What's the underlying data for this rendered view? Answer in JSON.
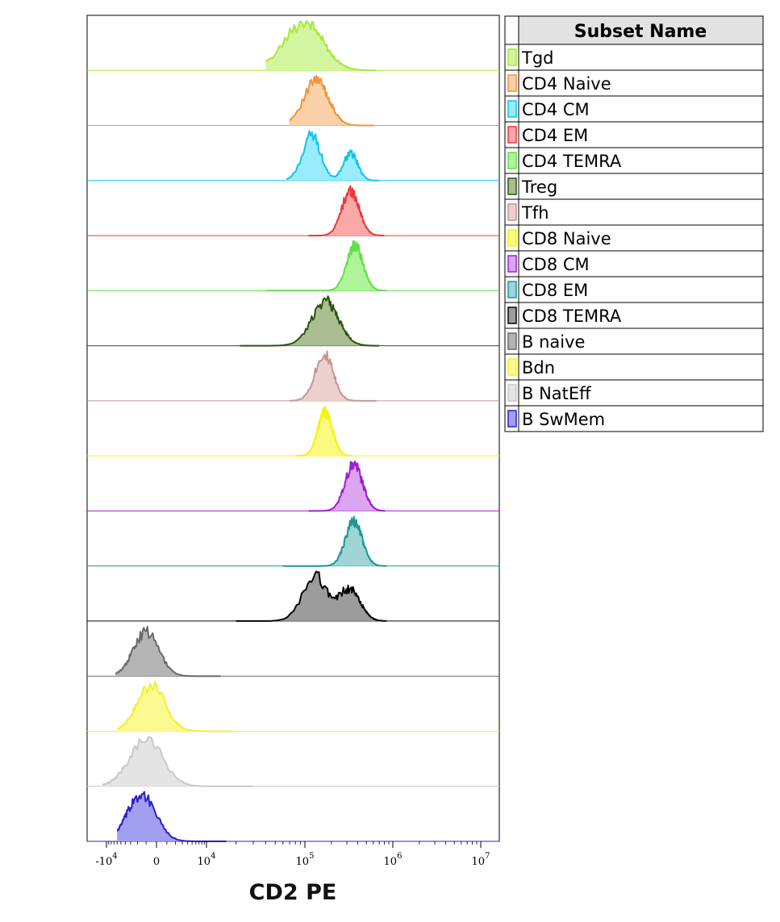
{
  "chart_data": {
    "type": "area",
    "xlabel": "CD2 PE",
    "x_scale": "biexponential",
    "x_ticks": [
      {
        "value": -10000,
        "base": "-10",
        "exp": "4"
      },
      {
        "value": 0,
        "base": "0",
        "exp": ""
      },
      {
        "value": 10000,
        "base": "10",
        "exp": "4"
      },
      {
        "value": 100000,
        "base": "10",
        "exp": "5"
      },
      {
        "value": 1000000,
        "base": "10",
        "exp": "6"
      },
      {
        "value": 10000000,
        "base": "10",
        "exp": "7"
      }
    ],
    "legend_title": "Subset Name",
    "legend_placement": "right",
    "series": [
      {
        "name": "Tgd",
        "fill": "#d4f5a0",
        "stroke": "#a6ea38",
        "peaks": [
          [
            100000,
            160000,
            1.0
          ]
        ],
        "range": [
          40000,
          650000
        ]
      },
      {
        "name": "CD4 Naive",
        "fill": "#fbd1aa",
        "stroke": "#f0943c",
        "peaks": [
          [
            135000,
            120000,
            1.0
          ]
        ],
        "range": [
          70000,
          620000
        ]
      },
      {
        "name": "CD4 CM",
        "fill": "#99ecfb",
        "stroke": "#12c3ec",
        "peaks": [
          [
            120000,
            70000,
            1.0
          ],
          [
            330000,
            150000,
            0.6
          ]
        ],
        "range": [
          65000,
          700000
        ]
      },
      {
        "name": "CD4 EM",
        "fill": "#fba8a8",
        "stroke": "#e83a3a",
        "peaks": [
          [
            330000,
            190000,
            1.0
          ]
        ],
        "range": [
          110000,
          800000
        ]
      },
      {
        "name": "CD4 TEMRA",
        "fill": "#b0f39a",
        "stroke": "#62e04a",
        "peaks": [
          [
            370000,
            200000,
            1.0
          ]
        ],
        "range": [
          40000,
          850000
        ]
      },
      {
        "name": "Treg",
        "fill": "#abbe92",
        "stroke": "#2e5212",
        "peaks": [
          [
            170000,
            170000,
            1.0
          ]
        ],
        "range": [
          22000,
          700000
        ]
      },
      {
        "name": "Tfh",
        "fill": "#ebd0ce",
        "stroke": "#c89490",
        "peaks": [
          [
            165000,
            100000,
            1.0
          ]
        ],
        "range": [
          70000,
          650000
        ]
      },
      {
        "name": "CD8 Naive",
        "fill": "#fafa80",
        "stroke": "#f2f21c",
        "peaks": [
          [
            170000,
            80000,
            1.0
          ]
        ],
        "range": [
          80000,
          350000
        ]
      },
      {
        "name": "CD8 CM",
        "fill": "#dba6ef",
        "stroke": "#9e21cc",
        "peaks": [
          [
            360000,
            210000,
            1.0
          ]
        ],
        "range": [
          110000,
          820000
        ]
      },
      {
        "name": "CD8 EM",
        "fill": "#9ed4d6",
        "stroke": "#1d9696",
        "peaks": [
          [
            360000,
            200000,
            1.0
          ]
        ],
        "range": [
          60000,
          850000
        ]
      },
      {
        "name": "CD8 TEMRA",
        "fill": "#9c9c9c",
        "stroke": "#050505",
        "peaks": [
          [
            130000,
            110000,
            1.0
          ],
          [
            320000,
            240000,
            0.7
          ]
        ],
        "range": [
          20000,
          850000
        ]
      },
      {
        "name": "B naive",
        "fill": "#b4b4b4",
        "stroke": "#6a6a6a",
        "peaks": [
          [
            -1000,
            2500,
            1.0
          ]
        ],
        "range": [
          -6500,
          14000
        ]
      },
      {
        "name": "Bdn",
        "fill": "#fafa90",
        "stroke": "#f0f030",
        "peaks": [
          [
            -500,
            3000,
            1.0
          ]
        ],
        "range": [
          -6000,
          18000
        ]
      },
      {
        "name": "B NatEff",
        "fill": "#e4e4e4",
        "stroke": "#c8c8c8",
        "peaks": [
          [
            -1000,
            3500,
            1.0
          ]
        ],
        "range": [
          -12000,
          30000
        ]
      },
      {
        "name": "B SwMem",
        "fill": "#a29ef0",
        "stroke": "#2a20c8",
        "peaks": [
          [
            -1500,
            2800,
            1.0
          ]
        ],
        "range": [
          -6000,
          16000
        ]
      }
    ]
  }
}
